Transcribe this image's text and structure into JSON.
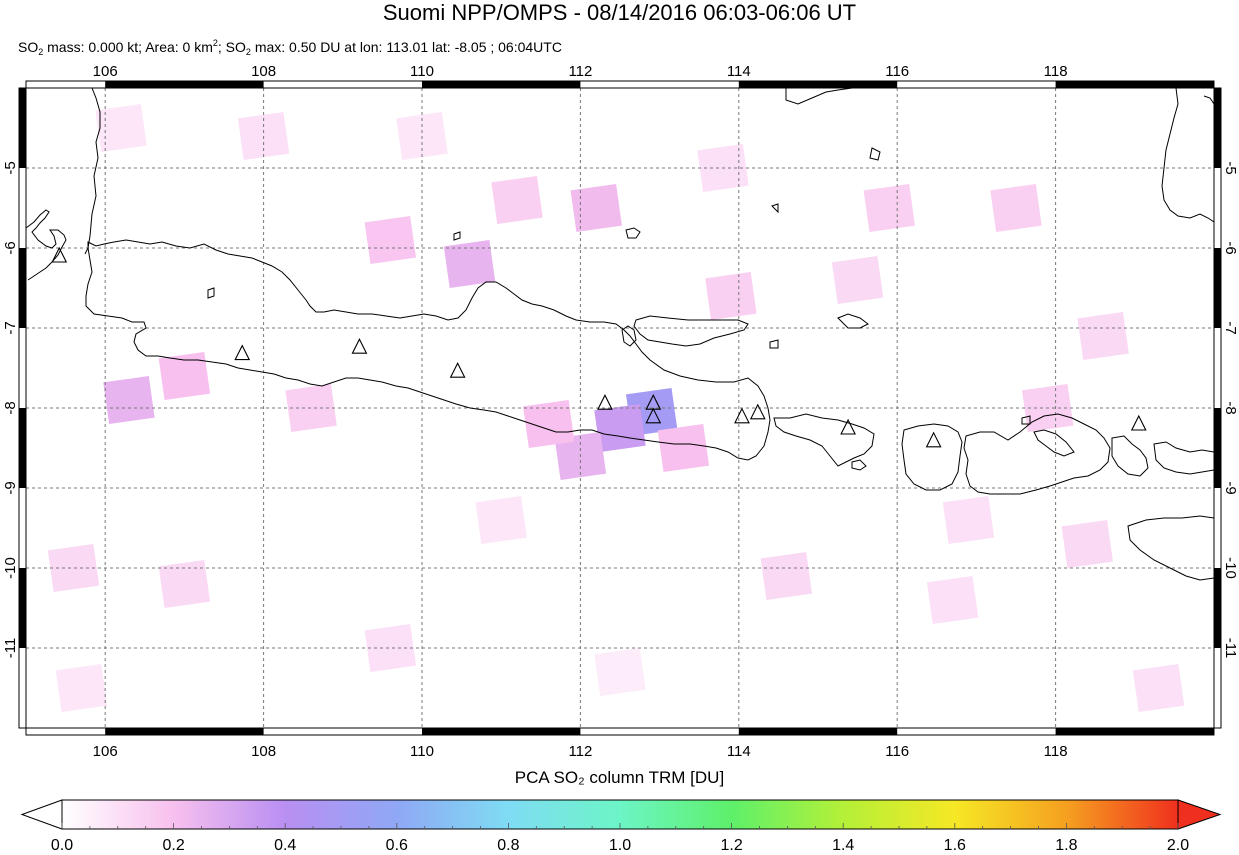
{
  "header": {
    "title": "Suomi NPP/OMPS - 08/14/2016 06:03-06:06 UT",
    "stats": {
      "mass_prefix": "SO",
      "mass_sub": "2",
      "mass_text": " mass: 0.000 kt; Area: 0 km",
      "area_sup": "2",
      "max_prefix": "; SO",
      "max_sub": "2",
      "max_text": " max: 0.50 DU at lon: 113.01 lat: -8.05 ; 06:04UTC"
    }
  },
  "map": {
    "lon_range": [
      105.0,
      120.0
    ],
    "lat_range": [
      -12.0,
      -4.0
    ],
    "lon_ticks": [
      "106",
      "108",
      "110",
      "112",
      "114",
      "116",
      "118"
    ],
    "lon_values": [
      106,
      108,
      110,
      112,
      114,
      116,
      118
    ],
    "lat_ticks": [
      "-5",
      "-6",
      "-7",
      "-8",
      "-9",
      "-10",
      "-11"
    ],
    "lat_values": [
      -5,
      -6,
      -7,
      -8,
      -9,
      -10,
      -11
    ],
    "gridlines": true,
    "volcanoes": [
      {
        "lon": 105.42,
        "lat": -6.1
      },
      {
        "lon": 107.73,
        "lat": -7.32
      },
      {
        "lon": 109.21,
        "lat": -7.24
      },
      {
        "lon": 110.45,
        "lat": -7.54
      },
      {
        "lon": 112.31,
        "lat": -7.94
      },
      {
        "lon": 112.92,
        "lat": -7.94
      },
      {
        "lon": 112.92,
        "lat": -8.11
      },
      {
        "lon": 114.04,
        "lat": -8.11
      },
      {
        "lon": 114.24,
        "lat": -8.06
      },
      {
        "lon": 115.38,
        "lat": -8.25
      },
      {
        "lon": 116.46,
        "lat": -8.41
      },
      {
        "lon": 119.05,
        "lat": -8.2
      }
    ],
    "so2_cells": [
      {
        "lon": 112.9,
        "lat": -8.05,
        "value": 0.5
      },
      {
        "lon": 112.5,
        "lat": -8.25,
        "value": 0.35
      },
      {
        "lon": 112.0,
        "lat": -8.6,
        "value": 0.25
      },
      {
        "lon": 111.6,
        "lat": -8.2,
        "value": 0.2
      },
      {
        "lon": 113.3,
        "lat": -8.5,
        "value": 0.2
      },
      {
        "lon": 106.3,
        "lat": -7.9,
        "value": 0.25
      },
      {
        "lon": 107.0,
        "lat": -7.6,
        "value": 0.2
      },
      {
        "lon": 110.6,
        "lat": -6.2,
        "value": 0.25
      },
      {
        "lon": 111.2,
        "lat": -5.4,
        "value": 0.15
      },
      {
        "lon": 112.2,
        "lat": -5.5,
        "value": 0.22
      },
      {
        "lon": 109.6,
        "lat": -5.9,
        "value": 0.18
      },
      {
        "lon": 115.9,
        "lat": -5.5,
        "value": 0.15
      },
      {
        "lon": 117.5,
        "lat": -5.5,
        "value": 0.15
      },
      {
        "lon": 108.6,
        "lat": -8.0,
        "value": 0.15
      },
      {
        "lon": 113.9,
        "lat": -6.6,
        "value": 0.15
      },
      {
        "lon": 115.5,
        "lat": -6.4,
        "value": 0.12
      },
      {
        "lon": 117.9,
        "lat": -8.0,
        "value": 0.15
      },
      {
        "lon": 118.6,
        "lat": -7.1,
        "value": 0.12
      },
      {
        "lon": 105.6,
        "lat": -10.0,
        "value": 0.12
      },
      {
        "lon": 107.0,
        "lat": -10.2,
        "value": 0.12
      },
      {
        "lon": 109.6,
        "lat": -11.0,
        "value": 0.1
      },
      {
        "lon": 114.6,
        "lat": -10.1,
        "value": 0.12
      },
      {
        "lon": 116.7,
        "lat": -10.4,
        "value": 0.1
      },
      {
        "lon": 118.4,
        "lat": -9.7,
        "value": 0.12
      },
      {
        "lon": 119.3,
        "lat": -11.5,
        "value": 0.1
      },
      {
        "lon": 106.2,
        "lat": -4.5,
        "value": 0.08
      },
      {
        "lon": 108.0,
        "lat": -4.6,
        "value": 0.1
      },
      {
        "lon": 110.0,
        "lat": -4.6,
        "value": 0.08
      },
      {
        "lon": 113.8,
        "lat": -5.0,
        "value": 0.1
      },
      {
        "lon": 105.7,
        "lat": -11.5,
        "value": 0.08
      },
      {
        "lon": 112.5,
        "lat": -11.3,
        "value": 0.06
      },
      {
        "lon": 111.0,
        "lat": -9.4,
        "value": 0.08
      },
      {
        "lon": 116.9,
        "lat": -9.4,
        "value": 0.1
      }
    ]
  },
  "colorbar": {
    "title": "PCA SO₂ column TRM [DU]",
    "ticks": [
      "0.0",
      "0.2",
      "0.4",
      "0.6",
      "0.8",
      "1.0",
      "1.2",
      "1.4",
      "1.6",
      "1.8",
      "2.0"
    ],
    "values": [
      0.0,
      0.2,
      0.4,
      0.6,
      0.8,
      1.0,
      1.2,
      1.4,
      1.6,
      1.8,
      2.0
    ],
    "range": [
      0.0,
      2.0
    ],
    "stops": [
      "#ffffff",
      "#f7c0ee",
      "#b98ff2",
      "#8fa8f5",
      "#7fdcf4",
      "#6cf5c6",
      "#5ef06a",
      "#b4f038",
      "#f6e825",
      "#f5a020",
      "#f0301e"
    ]
  }
}
